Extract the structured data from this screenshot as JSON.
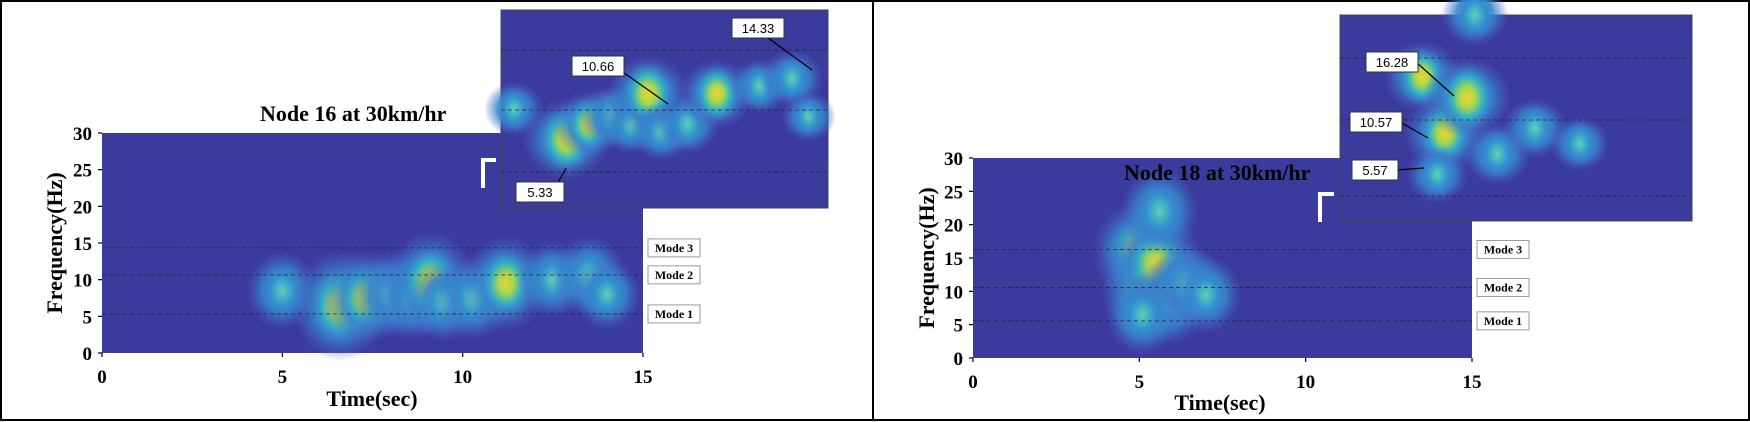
{
  "colors": {
    "background": "#3b3b9e",
    "low": "#4f5fc4",
    "mid": "#2fb0c8",
    "high": "#9fd65a",
    "peak": "#f0d230",
    "hot": "#1a1a1a"
  },
  "chart_data": [
    {
      "type": "heatmap",
      "title": "Node 16 at 30km/hr",
      "xlabel": "Time(sec)",
      "ylabel": "Frequency(Hz)",
      "xlim": [
        0,
        15
      ],
      "ylim": [
        0,
        30
      ],
      "x_ticks": [
        "0",
        "5",
        "10",
        "15"
      ],
      "y_ticks": [
        "0",
        "5",
        "10",
        "15",
        "20",
        "25",
        "30"
      ],
      "modes": [
        {
          "label": "Mode 1",
          "frequency": 5.33
        },
        {
          "label": "Mode 2",
          "frequency": 10.66
        },
        {
          "label": "Mode 3",
          "frequency": 14.33
        }
      ],
      "inset_callouts": [
        "5.33",
        "10.66",
        "14.33"
      ],
      "energy_blobs": [
        {
          "t": 5.0,
          "f": 8.5,
          "intensity": 0.45
        },
        {
          "t": 6.6,
          "f": 6.5,
          "intensity": 1.0
        },
        {
          "t": 7.3,
          "f": 7.5,
          "intensity": 0.7
        },
        {
          "t": 8.0,
          "f": 8.0,
          "intensity": 0.6
        },
        {
          "t": 8.6,
          "f": 7.5,
          "intensity": 0.55
        },
        {
          "t": 9.1,
          "f": 9.5,
          "intensity": 0.9
        },
        {
          "t": 9.5,
          "f": 7.0,
          "intensity": 0.5
        },
        {
          "t": 10.3,
          "f": 7.5,
          "intensity": 0.55
        },
        {
          "t": 11.2,
          "f": 9.5,
          "intensity": 0.75
        },
        {
          "t": 12.5,
          "f": 10.0,
          "intensity": 0.45
        },
        {
          "t": 13.5,
          "f": 10.5,
          "intensity": 0.5
        },
        {
          "t": 14.0,
          "f": 8.0,
          "intensity": 0.35
        }
      ]
    },
    {
      "type": "heatmap",
      "title": "Node 18 at 30km/hr",
      "xlabel": "Time(sec)",
      "ylabel": "Frequency(Hz)",
      "xlim": [
        0,
        15
      ],
      "ylim": [
        0,
        30
      ],
      "x_ticks": [
        "0",
        "5",
        "10",
        "15"
      ],
      "y_ticks": [
        "0",
        "5",
        "10",
        "15",
        "20",
        "25",
        "30"
      ],
      "modes": [
        {
          "label": "Mode 1",
          "frequency": 5.57
        },
        {
          "label": "Mode 2",
          "frequency": 10.57
        },
        {
          "label": "Mode 3",
          "frequency": 16.28
        }
      ],
      "inset_callouts": [
        "16.28",
        "10.57",
        "5.57"
      ],
      "energy_blobs": [
        {
          "t": 4.9,
          "f": 16.0,
          "intensity": 0.8
        },
        {
          "t": 5.2,
          "f": 10.5,
          "intensity": 0.9
        },
        {
          "t": 5.5,
          "f": 14.0,
          "intensity": 1.0
        },
        {
          "t": 5.6,
          "f": 22.0,
          "intensity": 0.6
        },
        {
          "t": 5.9,
          "f": 8.5,
          "intensity": 0.6
        },
        {
          "t": 6.4,
          "f": 11.0,
          "intensity": 0.55
        },
        {
          "t": 7.0,
          "f": 9.5,
          "intensity": 0.45
        },
        {
          "t": 5.1,
          "f": 6.5,
          "intensity": 0.5
        }
      ]
    }
  ]
}
